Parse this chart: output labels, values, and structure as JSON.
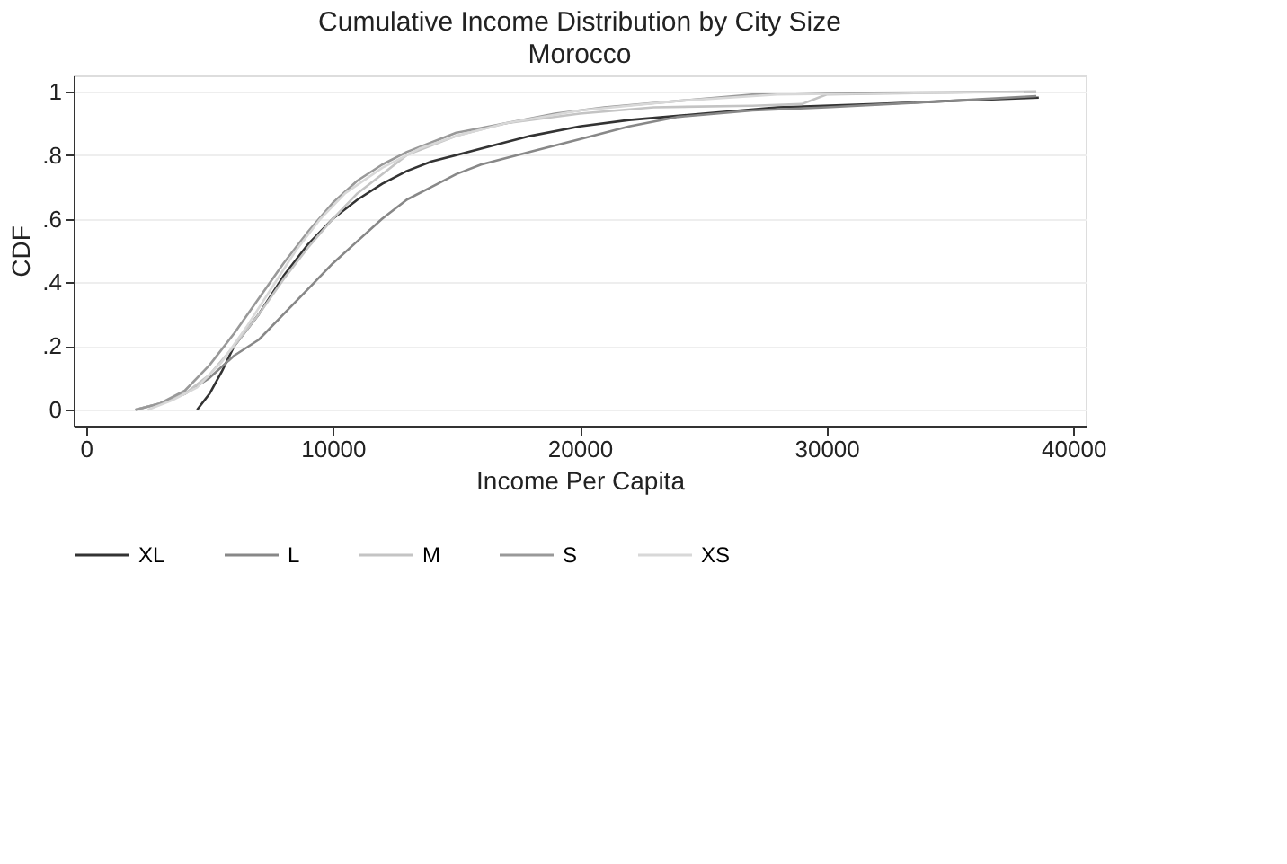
{
  "chart_data": {
    "type": "line",
    "title": "Cumulative Income Distribution by City Size",
    "subtitle": "Morocco",
    "xlabel": "Income Per Capita",
    "ylabel": "CDF",
    "xlim": [
      -500,
      40500
    ],
    "xticks": [
      0,
      10000,
      20000,
      30000,
      40000
    ],
    "ylim": [
      -0.05,
      1.05
    ],
    "yticks": [
      0,
      {
        "value": 0.2,
        "label": ".2"
      },
      {
        "value": 0.4,
        "label": ".4"
      },
      {
        "value": 0.6,
        "label": ".6"
      },
      {
        "value": 0.8,
        "label": ".8"
      },
      1
    ],
    "grid": "y",
    "legend": "bottom",
    "marker": "none",
    "line_style": "solid",
    "series": [
      {
        "name": "XL",
        "color": "#333333",
        "x": [
          4500,
          5000,
          5500,
          6000,
          7000,
          8000,
          9000,
          10000,
          11000,
          12000,
          13000,
          14000,
          16000,
          18000,
          20000,
          22000,
          25000,
          28000,
          32000,
          35000,
          38600
        ],
        "values": [
          0.0,
          0.05,
          0.12,
          0.2,
          0.3,
          0.42,
          0.52,
          0.6,
          0.66,
          0.71,
          0.75,
          0.78,
          0.82,
          0.86,
          0.89,
          0.91,
          0.93,
          0.95,
          0.96,
          0.97,
          0.98
        ]
      },
      {
        "name": "L",
        "color": "#888888",
        "x": [
          2000,
          3000,
          4000,
          5000,
          6000,
          7000,
          8000,
          9000,
          10000,
          11000,
          12000,
          13000,
          14000,
          15000,
          16000,
          18000,
          20000,
          22000,
          24000,
          27000,
          30000,
          35000,
          38500
        ],
        "values": [
          0.0,
          0.02,
          0.05,
          0.1,
          0.17,
          0.22,
          0.3,
          0.38,
          0.46,
          0.53,
          0.6,
          0.66,
          0.7,
          0.74,
          0.77,
          0.81,
          0.85,
          0.89,
          0.92,
          0.94,
          0.95,
          0.97,
          0.985
        ]
      },
      {
        "name": "M",
        "color": "#c4c4c4",
        "x": [
          2000,
          3000,
          4000,
          5000,
          6000,
          7000,
          8000,
          9000,
          10000,
          11000,
          12000,
          13000,
          15000,
          17000,
          20000,
          23000,
          27000,
          29000,
          30000,
          38500
        ],
        "values": [
          0.0,
          0.02,
          0.05,
          0.11,
          0.2,
          0.3,
          0.41,
          0.51,
          0.6,
          0.68,
          0.74,
          0.8,
          0.86,
          0.9,
          0.93,
          0.95,
          0.955,
          0.96,
          0.99,
          1.0
        ]
      },
      {
        "name": "S",
        "color": "#999999",
        "x": [
          2000,
          3000,
          4000,
          5000,
          6000,
          7000,
          8000,
          9000,
          10000,
          11000,
          12000,
          13000,
          14000,
          15000,
          17000,
          19000,
          21000,
          24000,
          27000,
          30000,
          38000
        ],
        "values": [
          0.0,
          0.02,
          0.06,
          0.14,
          0.24,
          0.35,
          0.46,
          0.56,
          0.65,
          0.72,
          0.77,
          0.81,
          0.84,
          0.87,
          0.9,
          0.93,
          0.95,
          0.97,
          0.99,
          0.995,
          0.998
        ]
      },
      {
        "name": "XS",
        "color": "#d8d8d8",
        "x": [
          2500,
          3500,
          4500,
          5500,
          6500,
          7500,
          8500,
          9500,
          10500,
          12000,
          13500,
          15000,
          17000,
          20000,
          24000,
          28000,
          33000,
          38000
        ],
        "values": [
          0.0,
          0.03,
          0.07,
          0.15,
          0.26,
          0.38,
          0.5,
          0.6,
          0.68,
          0.76,
          0.82,
          0.86,
          0.9,
          0.94,
          0.97,
          0.99,
          0.995,
          0.998
        ]
      }
    ]
  }
}
